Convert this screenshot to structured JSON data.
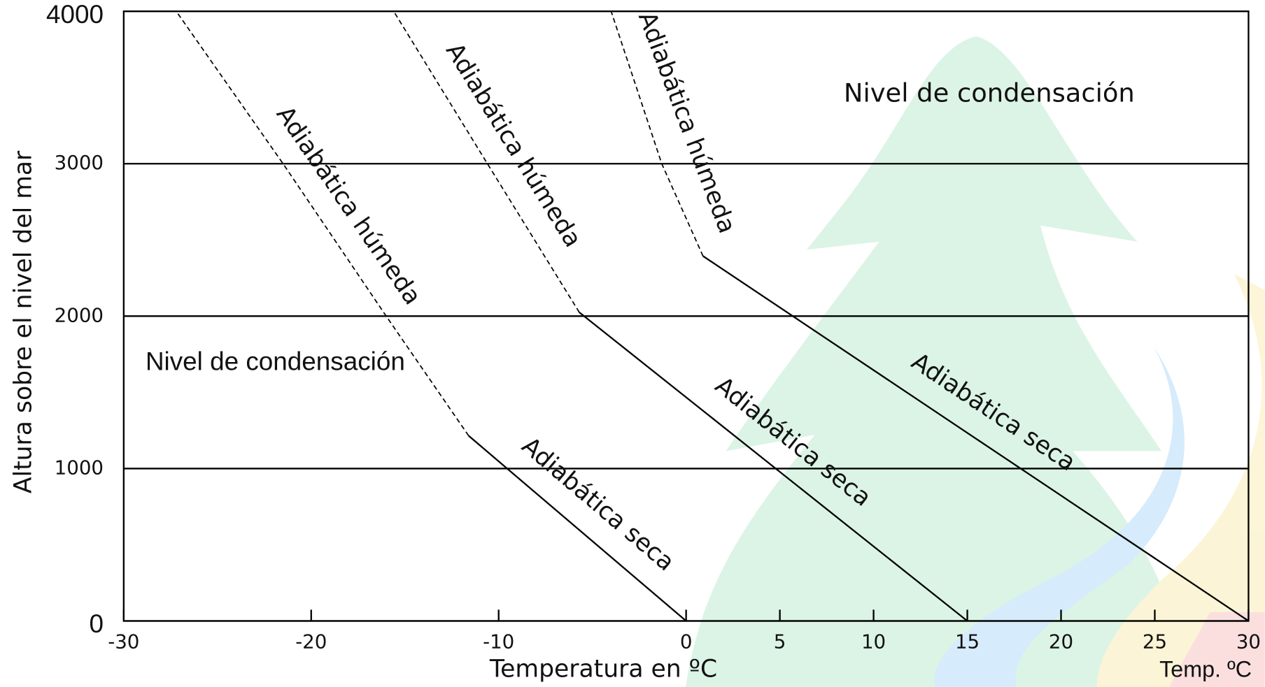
{
  "chart_data": {
    "type": "line",
    "y_label": "Altura sobre el nivel del mar",
    "x_label": "Temperatura en ºC",
    "x_unit_label": "Temp. ºC",
    "annotations": [
      "Nivel de condensación",
      "Nivel de condensación"
    ],
    "xlim": [
      -30,
      30
    ],
    "xticks": [
      -30,
      -20,
      -10,
      0,
      5,
      10,
      15,
      20,
      25,
      30
    ],
    "ylim": [
      0,
      4000
    ],
    "yticks": [
      0,
      1000,
      2000,
      3000,
      4000
    ],
    "grid": true,
    "series": [
      {
        "name": "Adiabática seca",
        "color": "#000000",
        "style": "solid",
        "x": [
          0,
          -11.6
        ],
        "values": [
          0,
          1215
        ]
      },
      {
        "name": "Adiabática húmeda",
        "color": "#000000",
        "style": "dashed",
        "x": [
          -11.6,
          -16,
          -21.5,
          -27.2
        ],
        "values": [
          1215,
          2000,
          3000,
          4000
        ]
      },
      {
        "name": "Adiabática seca",
        "color": "#000000",
        "style": "solid",
        "x": [
          15,
          -5.7
        ],
        "values": [
          0,
          2025
        ]
      },
      {
        "name": "Adiabática húmeda",
        "color": "#000000",
        "style": "dashed",
        "x": [
          -5.7,
          -10.6,
          -15.6
        ],
        "values": [
          2025,
          3000,
          4000
        ]
      },
      {
        "name": "Adiabática seca",
        "color": "#000000",
        "style": "solid",
        "x": [
          30,
          0.9
        ],
        "values": [
          0,
          2394
        ]
      },
      {
        "name": "Adiabática húmeda",
        "color": "#000000",
        "style": "dashed",
        "x": [
          0.9,
          -1.3,
          -4
        ],
        "values": [
          2394,
          3000,
          4000
        ]
      }
    ]
  }
}
